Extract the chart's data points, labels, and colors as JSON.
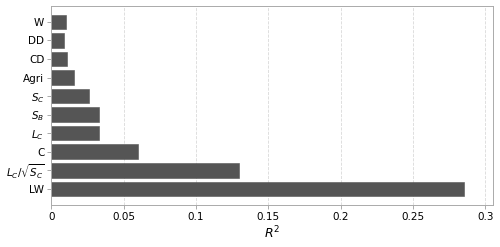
{
  "categories": [
    "W",
    "DD",
    "CD",
    "Agri",
    "$S_C$",
    "$S_B$",
    "$L_C$",
    "C",
    "$L_C/\\sqrt{S_C}$",
    "LW"
  ],
  "values": [
    0.01,
    0.009,
    0.011,
    0.016,
    0.026,
    0.033,
    0.033,
    0.06,
    0.13,
    0.285
  ],
  "bar_color": "#555555",
  "xlim": [
    0,
    0.305
  ],
  "xticks": [
    0,
    0.05,
    0.1,
    0.15,
    0.2,
    0.25,
    0.3
  ],
  "xtick_labels": [
    "0",
    "0.05",
    "0.1",
    "0.15",
    "0.2",
    "0.25",
    "0.3"
  ],
  "xlabel": "$R^2$",
  "xlabel_fontsize": 9,
  "tick_fontsize": 7.5,
  "bar_height": 0.78,
  "background_color": "#ffffff",
  "grid_color": "#d0d0d0",
  "edge_color": "#555555"
}
